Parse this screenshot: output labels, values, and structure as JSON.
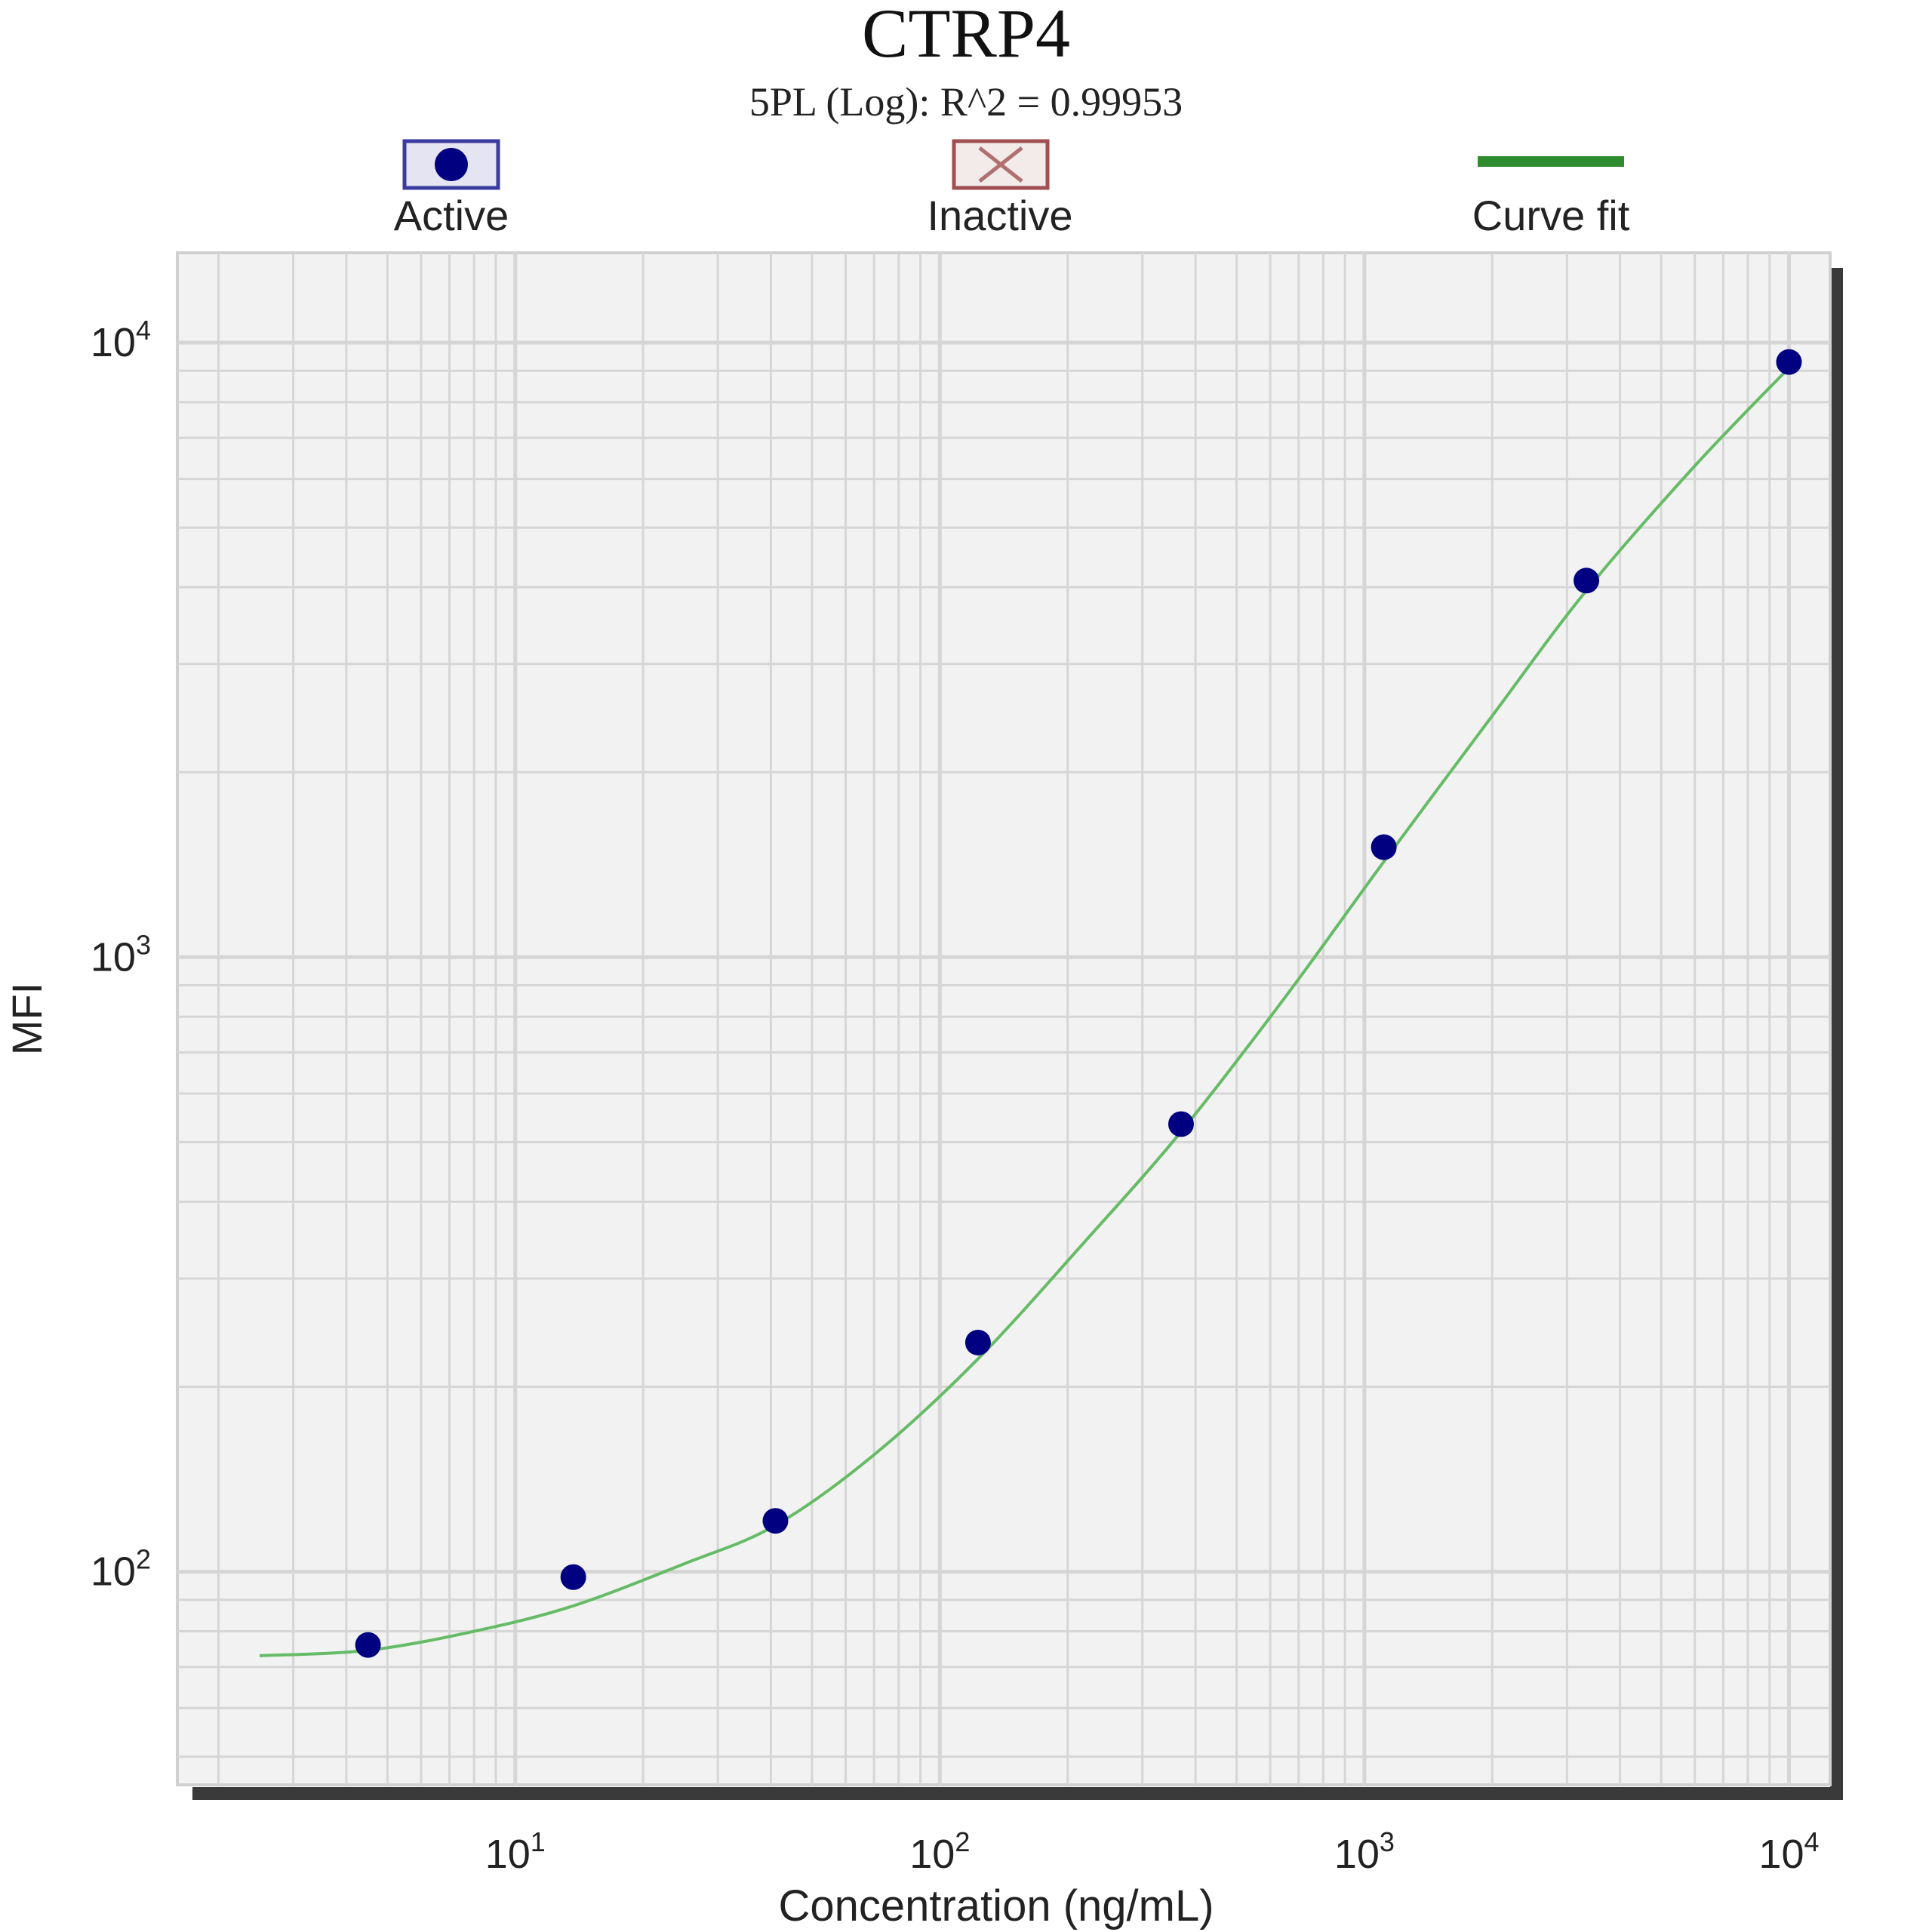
{
  "chart_data": {
    "type": "scatter",
    "title": "CTRP4",
    "subtitle": "5PL (Log): R^2 = 0.99953",
    "xlabel": "Concentration (ng/mL)",
    "ylabel": "MFI",
    "x_scale": "log",
    "y_scale": "log",
    "xlim": [
      1.6,
      12500
    ],
    "ylim": [
      45,
      14000
    ],
    "x_ticks": [
      {
        "value": 10,
        "base": "10",
        "exp": "1"
      },
      {
        "value": 100,
        "base": "10",
        "exp": "2"
      },
      {
        "value": 1000,
        "base": "10",
        "exp": "3"
      },
      {
        "value": 10000,
        "base": "10",
        "exp": "4"
      }
    ],
    "y_ticks": [
      {
        "value": 100,
        "base": "10",
        "exp": "2"
      },
      {
        "value": 1000,
        "base": "10",
        "exp": "3"
      },
      {
        "value": 10000,
        "base": "10",
        "exp": "4"
      }
    ],
    "grid": true,
    "legend": {
      "position": "top",
      "entries": [
        {
          "label": "Active",
          "symbol": "dot",
          "color": "#000080",
          "border": "#3a3aa0"
        },
        {
          "label": "Inactive",
          "symbol": "x",
          "color": "#b07070",
          "border": "#a05050"
        },
        {
          "label": "Curve fit",
          "symbol": "line",
          "color": "#2e8b2e"
        }
      ]
    },
    "series": [
      {
        "name": "Active",
        "color": "#000080",
        "points": [
          {
            "x": 4.5,
            "y": 76
          },
          {
            "x": 13.7,
            "y": 98
          },
          {
            "x": 41,
            "y": 121
          },
          {
            "x": 123,
            "y": 236
          },
          {
            "x": 370,
            "y": 535
          },
          {
            "x": 1111,
            "y": 1510
          },
          {
            "x": 3333,
            "y": 4100
          },
          {
            "x": 10000,
            "y": 9300
          }
        ]
      },
      {
        "name": "Curve fit",
        "color": "#66bb66",
        "points": [
          {
            "x": 2.5,
            "y": 73
          },
          {
            "x": 4.5,
            "y": 74.5
          },
          {
            "x": 8,
            "y": 80
          },
          {
            "x": 13.7,
            "y": 88
          },
          {
            "x": 25,
            "y": 103
          },
          {
            "x": 41,
            "y": 119
          },
          {
            "x": 70,
            "y": 155
          },
          {
            "x": 123,
            "y": 222
          },
          {
            "x": 220,
            "y": 345
          },
          {
            "x": 370,
            "y": 520
          },
          {
            "x": 650,
            "y": 860
          },
          {
            "x": 1111,
            "y": 1430
          },
          {
            "x": 2000,
            "y": 2470
          },
          {
            "x": 3333,
            "y": 3950
          },
          {
            "x": 6000,
            "y": 6300
          },
          {
            "x": 10000,
            "y": 9100
          }
        ]
      }
    ]
  }
}
